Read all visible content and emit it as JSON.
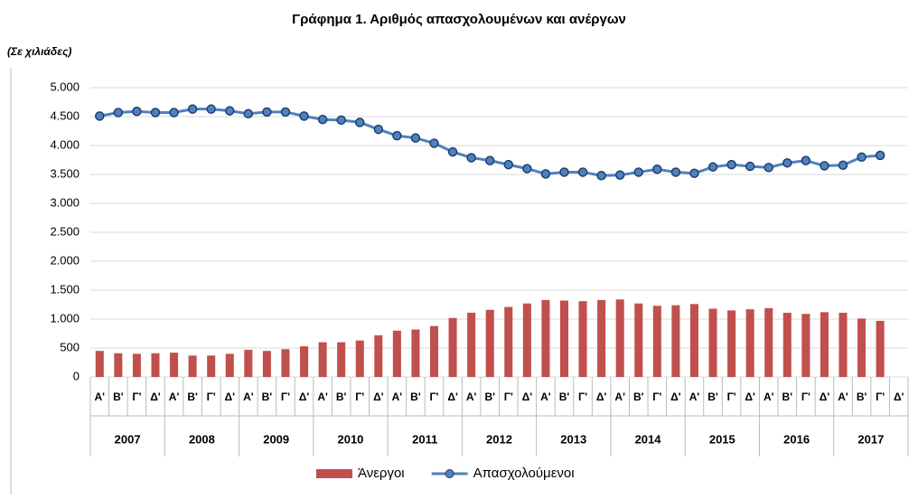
{
  "chart_data": {
    "type": "bar_line",
    "title": "Γράφημα 1. Αριθμός απασχολουμένων και ανέργων",
    "subtitle": "(Σε χιλιάδες)",
    "categories": [
      "Α'",
      "Β'",
      "Γ'",
      "Δ'",
      "Α'",
      "Β'",
      "Γ'",
      "Δ'",
      "Α'",
      "Β'",
      "Γ'",
      "Δ'",
      "Α'",
      "Β'",
      "Γ'",
      "Δ'",
      "Α'",
      "Β'",
      "Γ'",
      "Δ'",
      "Α'",
      "Β'",
      "Γ'",
      "Δ'",
      "Α'",
      "Β'",
      "Γ'",
      "Δ'",
      "Α'",
      "Β'",
      "Γ'",
      "Δ'",
      "Α'",
      "Β'",
      "Γ'",
      "Δ'",
      "Α'",
      "Β'",
      "Γ'",
      "Δ'",
      "Α'",
      "Β'",
      "Γ'",
      "Δ'"
    ],
    "years": [
      "2007",
      "2008",
      "2009",
      "2010",
      "2011",
      "2012",
      "2013",
      "2014",
      "2015",
      "2016",
      "2017"
    ],
    "series": [
      {
        "name": "Άνεργοι",
        "type": "bar",
        "color": "#c0504d",
        "values": [
          450,
          410,
          400,
          410,
          420,
          370,
          370,
          400,
          470,
          450,
          480,
          530,
          600,
          600,
          630,
          720,
          800,
          820,
          880,
          1020,
          1110,
          1160,
          1210,
          1270,
          1330,
          1320,
          1310,
          1330,
          1340,
          1270,
          1230,
          1240,
          1260,
          1180,
          1150,
          1170,
          1190,
          1110,
          1090,
          1120,
          1110,
          1010,
          970,
          null
        ]
      },
      {
        "name": "Απασχολούμενοι",
        "type": "line",
        "color": "#4f81bd",
        "values": [
          4510,
          4570,
          4590,
          4570,
          4570,
          4630,
          4630,
          4600,
          4550,
          4580,
          4580,
          4510,
          4450,
          4440,
          4400,
          4280,
          4170,
          4130,
          4040,
          3890,
          3790,
          3740,
          3670,
          3600,
          3510,
          3540,
          3540,
          3480,
          3490,
          3540,
          3590,
          3540,
          3520,
          3630,
          3670,
          3640,
          3620,
          3700,
          3740,
          3650,
          3660,
          3800,
          3830,
          null
        ]
      }
    ],
    "ylim": [
      0,
      5000
    ],
    "yticks": [
      0,
      500,
      {
        "value": 1000,
        "label": "1.000"
      },
      {
        "value": 1500,
        "label": "1.500"
      },
      {
        "value": 2000,
        "label": "2.000"
      },
      {
        "value": 2500,
        "label": "2.500"
      },
      {
        "value": 3000,
        "label": "3.000"
      },
      {
        "value": 3500,
        "label": "3.500"
      },
      {
        "value": 4000,
        "label": "4.000"
      },
      {
        "value": 4500,
        "label": "4.500"
      },
      {
        "value": 5000,
        "label": "5.000"
      }
    ],
    "grid": true,
    "legend": "bottom"
  }
}
